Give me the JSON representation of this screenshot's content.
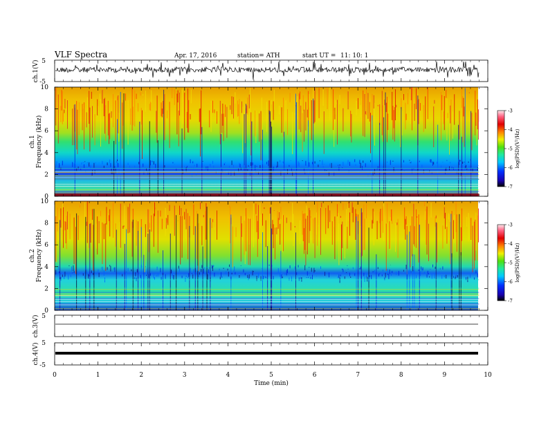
{
  "header": {
    "title": "VLF Spectra",
    "date": "Apr. 17, 2016",
    "station": "station= ATH",
    "start_label": "start  UT  =",
    "start_time": "11: 10: 1"
  },
  "colors": {
    "spectrogram_colormap": [
      "#000000",
      "#1a00b0",
      "#0030ff",
      "#00c8ff",
      "#20e8a0",
      "#50e010",
      "#f0f000",
      "#ff8000",
      "#e00000",
      "#ff6080",
      "#ffd0d8"
    ],
    "trace": "#000000"
  },
  "chart_data": [
    {
      "type": "line",
      "name": "ch1-waveform",
      "ylabel": "ch.1(V)",
      "ylim": [
        -5,
        5
      ],
      "yticks": [
        "5",
        "-5"
      ],
      "xlim": [
        0,
        10
      ]
    },
    {
      "type": "heatmap",
      "name": "ch1-spectrogram",
      "ylabel_channel": "ch.1",
      "ylabel": "Frequency  (kHz)",
      "ylim": [
        0,
        10
      ],
      "yticks": [
        "0",
        "2",
        "4",
        "6",
        "8",
        "10"
      ],
      "xlim": [
        0,
        10
      ],
      "data_end_min": 9.8,
      "colorbar": {
        "label": "log(PSD)(V²/Hz)",
        "range": [
          -7,
          -3
        ],
        "ticks": [
          "-3",
          "-4",
          "-5",
          "-6",
          "-7"
        ]
      }
    },
    {
      "type": "heatmap",
      "name": "ch2-spectrogram",
      "ylabel_channel": "ch.2",
      "ylabel": "Frequency  (kHz)",
      "ylim": [
        0,
        10
      ],
      "yticks": [
        "0",
        "2",
        "4",
        "6",
        "8",
        "10"
      ],
      "xlim": [
        0,
        10
      ],
      "data_end_min": 9.8,
      "colorbar": {
        "label": "log(PSD)(V²/Hz)",
        "range": [
          -7,
          -3
        ],
        "ticks": [
          "-3",
          "-4",
          "-5",
          "-6",
          "-7"
        ]
      }
    },
    {
      "type": "line",
      "name": "ch3-waveform",
      "ylabel": "ch.3(V)",
      "ylim": [
        -5,
        5
      ],
      "yticks": [
        "5"
      ],
      "xlim": [
        0,
        10
      ]
    },
    {
      "type": "line",
      "name": "ch4-waveform",
      "ylabel": "ch.4(V)",
      "ylim": [
        -5,
        5
      ],
      "yticks": [
        "5",
        "-5"
      ],
      "xlim": [
        0,
        10
      ]
    }
  ],
  "xaxis": {
    "label": "Time  (min)",
    "ticks": [
      "0",
      "1",
      "2",
      "3",
      "4",
      "5",
      "6",
      "7",
      "8",
      "9",
      "10"
    ]
  }
}
